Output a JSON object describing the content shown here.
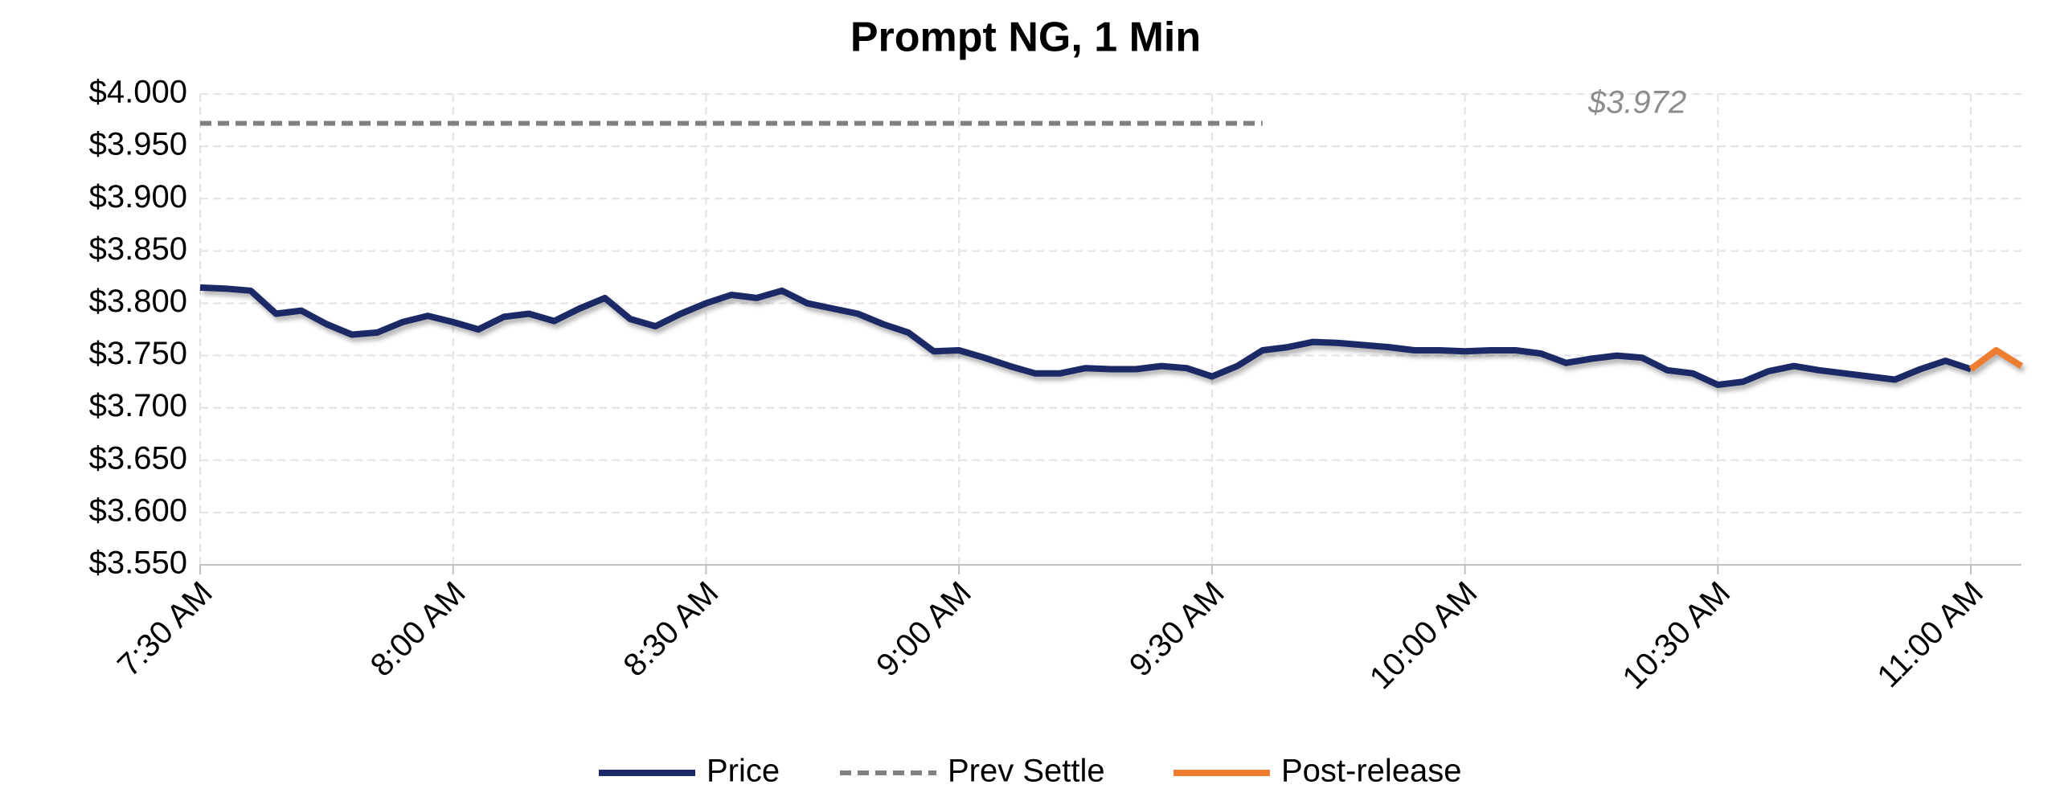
{
  "chart_data": {
    "type": "line",
    "title": "Prompt NG, 1 Min",
    "categories": [
      "7:30 AM",
      null,
      null,
      null,
      null,
      null,
      null,
      null,
      null,
      null,
      "8:00 AM",
      null,
      null,
      null,
      null,
      null,
      null,
      null,
      null,
      null,
      "8:30 AM",
      null,
      null,
      null,
      null,
      null,
      null,
      null,
      null,
      null,
      "9:00 AM",
      null,
      null,
      null,
      null,
      null,
      null,
      null,
      null,
      null,
      "9:30 AM",
      null,
      null,
      null,
      null,
      null,
      null,
      null,
      null,
      null,
      "10:00 AM",
      null,
      null,
      null,
      null,
      null,
      null,
      null,
      null,
      null,
      "10:30 AM",
      null,
      null,
      null,
      null,
      null,
      null,
      null,
      null,
      null,
      "11:00 AM",
      null,
      null
    ],
    "series": [
      {
        "name": "Price",
        "color": "#1b2a66",
        "values": [
          3.815,
          3.814,
          3.812,
          3.79,
          3.793,
          3.78,
          3.77,
          3.772,
          3.782,
          3.788,
          3.782,
          3.775,
          3.787,
          3.79,
          3.783,
          3.795,
          3.805,
          3.785,
          3.778,
          3.79,
          3.8,
          3.808,
          3.805,
          3.812,
          3.8,
          3.795,
          3.79,
          3.78,
          3.772,
          3.754,
          3.755,
          3.748,
          3.74,
          3.733,
          3.733,
          3.738,
          3.737,
          3.737,
          3.74,
          3.738,
          3.73,
          3.74,
          3.755,
          3.758,
          3.763,
          3.762,
          3.76,
          3.758,
          3.755,
          3.755,
          3.754,
          3.755,
          3.755,
          3.752,
          3.743,
          3.747,
          3.75,
          3.748,
          3.736,
          3.733,
          3.722,
          3.725,
          3.735,
          3.74,
          3.736,
          3.733,
          3.73,
          3.727,
          3.737,
          3.745,
          3.737,
          null,
          null
        ]
      },
      {
        "name": "Prev Settle",
        "color": "#808080",
        "dashed": true,
        "values": [
          3.972,
          3.972,
          3.972,
          3.972,
          3.972,
          3.972,
          3.972,
          3.972,
          3.972,
          3.972,
          3.972,
          3.972,
          3.972,
          3.972,
          3.972,
          3.972,
          3.972,
          3.972,
          3.972,
          3.972,
          3.972,
          3.972,
          3.972,
          3.972,
          3.972,
          3.972,
          3.972,
          3.972,
          3.972,
          3.972,
          3.972,
          3.972,
          3.972,
          3.972,
          3.972,
          3.972,
          3.972,
          3.972,
          3.972,
          3.972,
          3.972,
          3.972,
          3.972,
          null,
          null,
          null,
          null,
          null,
          null,
          null,
          null,
          null,
          null,
          null,
          null,
          null,
          null,
          null,
          null,
          null,
          null,
          null,
          null,
          null,
          null,
          null,
          null,
          null,
          null,
          null,
          null,
          null,
          null
        ]
      },
      {
        "name": "Post-release",
        "color": "#ed7d31",
        "values": [
          null,
          null,
          null,
          null,
          null,
          null,
          null,
          null,
          null,
          null,
          null,
          null,
          null,
          null,
          null,
          null,
          null,
          null,
          null,
          null,
          null,
          null,
          null,
          null,
          null,
          null,
          null,
          null,
          null,
          null,
          null,
          null,
          null,
          null,
          null,
          null,
          null,
          null,
          null,
          null,
          null,
          null,
          null,
          null,
          null,
          null,
          null,
          null,
          null,
          null,
          null,
          null,
          null,
          null,
          null,
          null,
          null,
          null,
          null,
          null,
          null,
          null,
          null,
          null,
          null,
          null,
          null,
          null,
          null,
          null,
          3.737,
          3.755,
          3.74
        ]
      }
    ],
    "annotations": [
      {
        "text": "$3.972"
      }
    ],
    "ylim": [
      3.55,
      4.0
    ],
    "yticks": [
      {
        "value": 3.55,
        "label": "$3.550"
      },
      {
        "value": 3.6,
        "label": "$3.600"
      },
      {
        "value": 3.65,
        "label": "$3.650"
      },
      {
        "value": 3.7,
        "label": "$3.700"
      },
      {
        "value": 3.75,
        "label": "$3.750"
      },
      {
        "value": 3.8,
        "label": "$3.800"
      },
      {
        "value": 3.85,
        "label": "$3.850"
      },
      {
        "value": 3.9,
        "label": "$3.900"
      },
      {
        "value": 3.95,
        "label": "$3.950"
      },
      {
        "value": 4.0,
        "label": "$4.000"
      }
    ],
    "grid": true,
    "legend": "bottom"
  }
}
